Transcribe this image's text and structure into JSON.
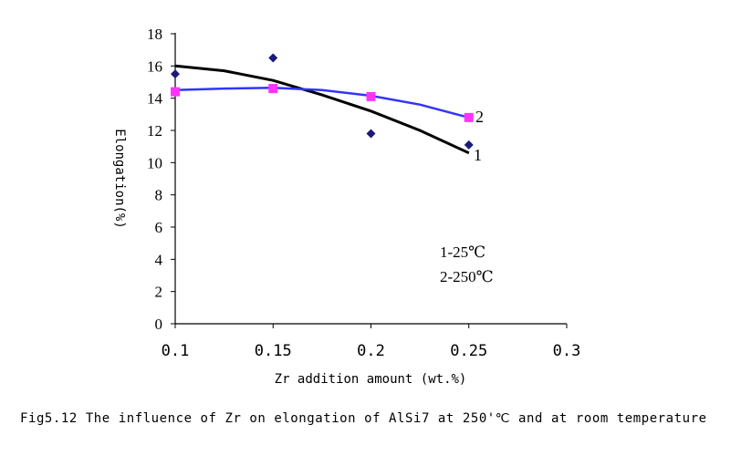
{
  "chart_data": {
    "type": "scatter",
    "title": "",
    "caption": "Fig5.12 The influence of Zr on elongation of AlSi7 at 250'℃ and at room temperature",
    "xlabel": "Zr addition amount (wt.%)",
    "ylabel": "Elongation(%)",
    "xlim": [
      0.1,
      0.3
    ],
    "ylim": [
      0,
      18
    ],
    "xticks": [
      0.1,
      0.15,
      0.2,
      0.25,
      0.3
    ],
    "xtick_labels": [
      "0.1",
      "0.15",
      "0.2",
      "0.25",
      "0.3"
    ],
    "yticks": [
      0,
      2,
      4,
      6,
      8,
      10,
      12,
      14,
      16,
      18
    ],
    "ytick_labels": [
      "0",
      "2",
      "4",
      "6",
      "8",
      "10",
      "12",
      "14",
      "16",
      "18"
    ],
    "grid": false,
    "legend_lines": [
      "1-25℃",
      "2-250℃"
    ],
    "series": [
      {
        "name": "1",
        "marker": "diamond",
        "marker_color": "#1a1a7a",
        "line_color": "#000000",
        "x": [
          0.1,
          0.15,
          0.2,
          0.25
        ],
        "y": [
          15.5,
          16.5,
          11.8,
          11.1
        ],
        "trend_x": [
          0.1,
          0.125,
          0.15,
          0.175,
          0.2,
          0.225,
          0.25
        ],
        "trend_y": [
          16.0,
          15.7,
          15.1,
          14.2,
          13.2,
          12.0,
          10.6
        ]
      },
      {
        "name": "2",
        "marker": "square",
        "marker_color": "#ff33ff",
        "line_color": "#3333ff",
        "x": [
          0.1,
          0.15,
          0.2,
          0.25
        ],
        "y": [
          14.4,
          14.6,
          14.1,
          12.8
        ],
        "trend_x": [
          0.1,
          0.125,
          0.15,
          0.175,
          0.2,
          0.225,
          0.25
        ],
        "trend_y": [
          14.5,
          14.6,
          14.65,
          14.5,
          14.15,
          13.6,
          12.8
        ]
      }
    ]
  }
}
